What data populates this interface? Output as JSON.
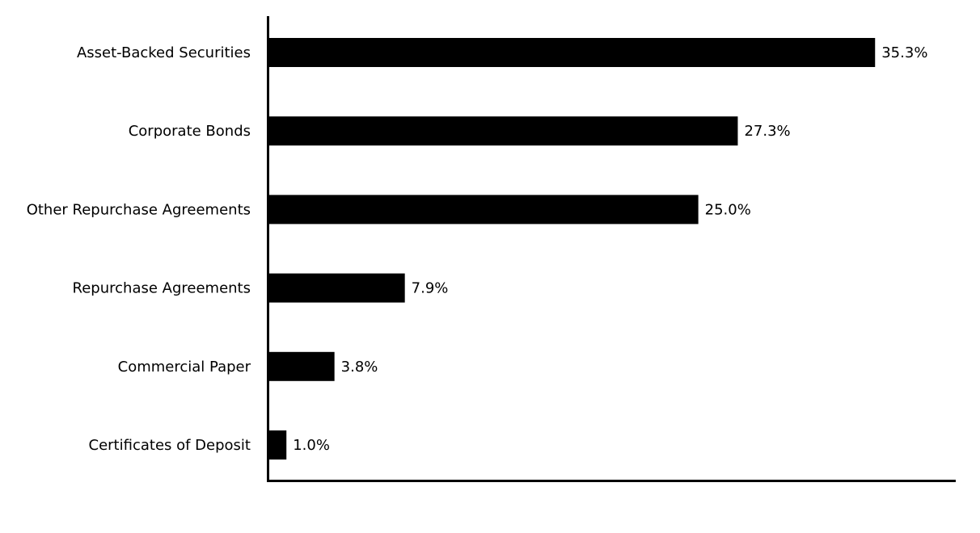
{
  "chart_data": {
    "type": "bar",
    "orientation": "horizontal",
    "categories": [
      "Asset-Backed Securities",
      "Corporate Bonds",
      "Other Repurchase Agreements",
      "Repurchase Agreements",
      "Commercial Paper",
      "Certificates of Deposit"
    ],
    "values": [
      35.3,
      27.3,
      25.0,
      7.9,
      3.8,
      1.0
    ],
    "data_labels": [
      "35.3%",
      "27.3%",
      "25.0%",
      "7.9%",
      "3.8%",
      "1.0%"
    ],
    "title": "",
    "xlabel": "",
    "ylabel": "",
    "xlim": [
      0,
      40
    ],
    "grid": false,
    "bar_color": "#000000"
  }
}
